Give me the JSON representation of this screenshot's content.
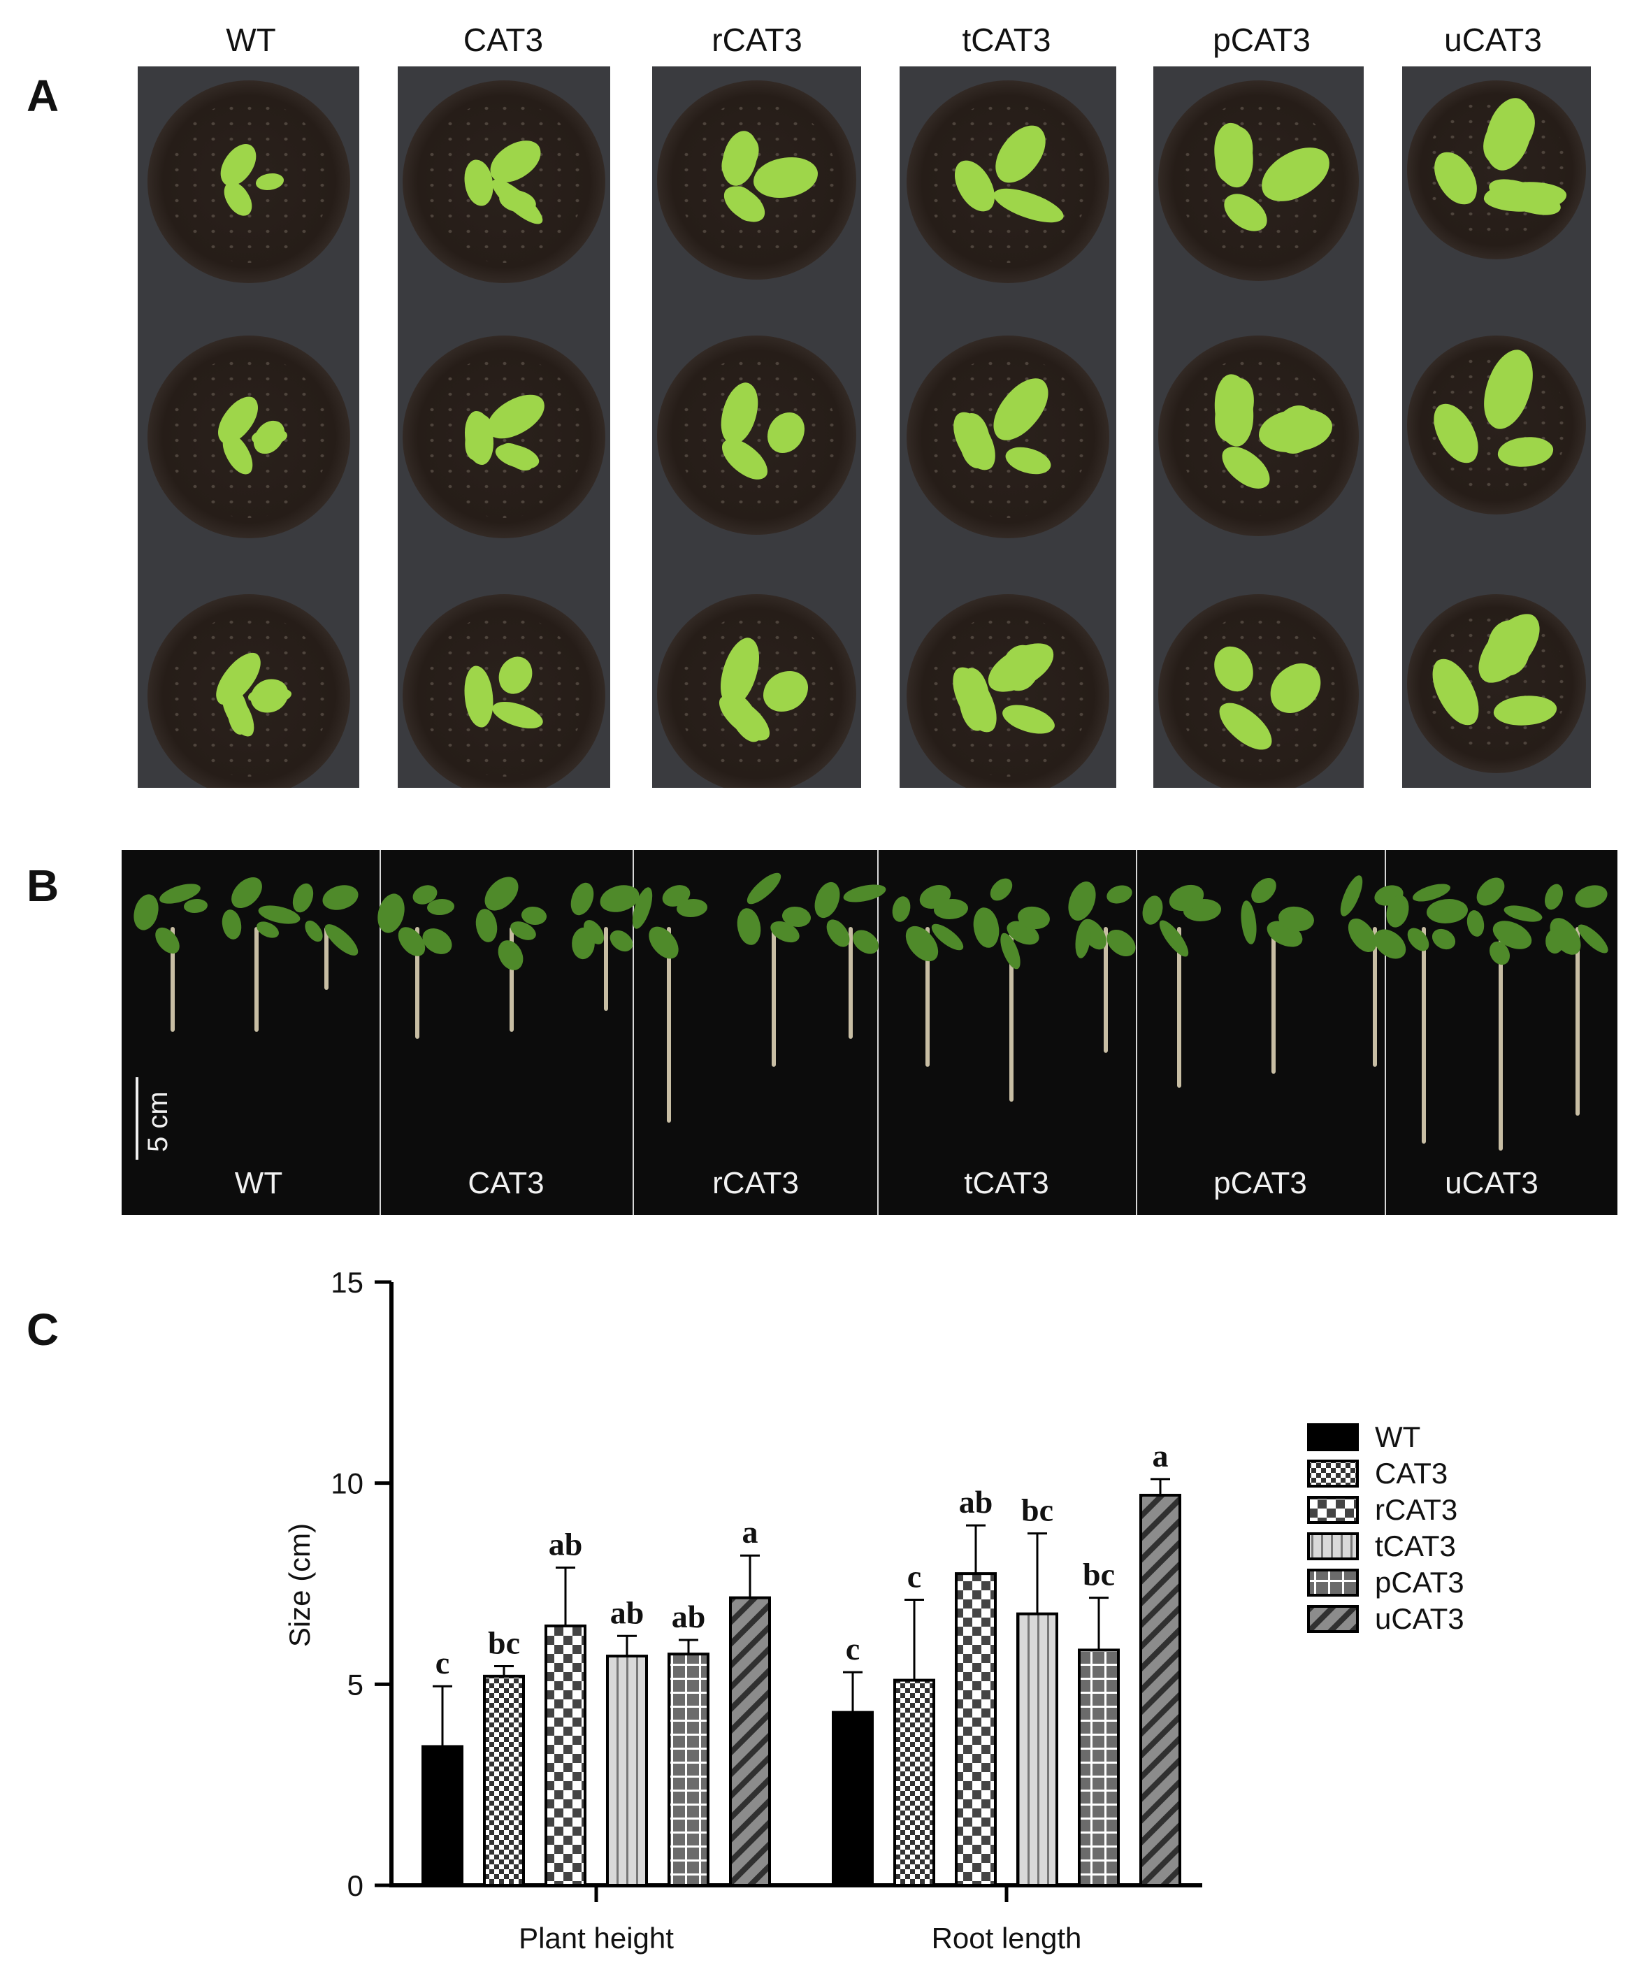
{
  "panels": {
    "a_label": "A",
    "b_label": "B",
    "c_label": "C"
  },
  "genotypes": [
    "WT",
    "CAT3",
    "rCAT3",
    "tCAT3",
    "pCAT3",
    "uCAT3"
  ],
  "panel_b": {
    "scale_label": "5 cm"
  },
  "colors": {
    "strip_bg": "#3a3b3f",
    "leaf_green": "#9ed64a",
    "seedling_green": "#4f8a2a",
    "black_bg": "#0c0c0c",
    "bar_outline": "#000000"
  },
  "chart_data": {
    "type": "bar",
    "title": "",
    "xlabel": "",
    "ylabel": "Size (cm)",
    "ylim": [
      0,
      15
    ],
    "yticks": [
      0,
      5,
      10,
      15
    ],
    "categories": [
      "Plant height",
      "Root length"
    ],
    "legend_position": "right",
    "series": [
      {
        "name": "WT",
        "pattern": "solid-black",
        "values": [
          3.45,
          4.3
        ],
        "errors": [
          1.5,
          1.0
        ],
        "letters": [
          "c",
          "c"
        ]
      },
      {
        "name": "CAT3",
        "pattern": "fine-check",
        "values": [
          5.2,
          5.1
        ],
        "errors": [
          0.25,
          2.0
        ],
        "letters": [
          "bc",
          "c"
        ]
      },
      {
        "name": "rCAT3",
        "pattern": "large-check",
        "values": [
          6.45,
          7.75
        ],
        "errors": [
          1.45,
          1.2
        ],
        "letters": [
          "ab",
          "ab"
        ]
      },
      {
        "name": "tCAT3",
        "pattern": "vertical-lines",
        "values": [
          5.7,
          6.75
        ],
        "errors": [
          0.5,
          2.0
        ],
        "letters": [
          "ab",
          "bc"
        ]
      },
      {
        "name": "pCAT3",
        "pattern": "grid",
        "values": [
          5.75,
          5.85
        ],
        "errors": [
          0.35,
          1.3
        ],
        "letters": [
          "ab",
          "bc"
        ]
      },
      {
        "name": "uCAT3",
        "pattern": "diagonal",
        "values": [
          7.15,
          9.7
        ],
        "errors": [
          1.05,
          0.4
        ],
        "letters": [
          "a",
          "a"
        ]
      }
    ]
  }
}
